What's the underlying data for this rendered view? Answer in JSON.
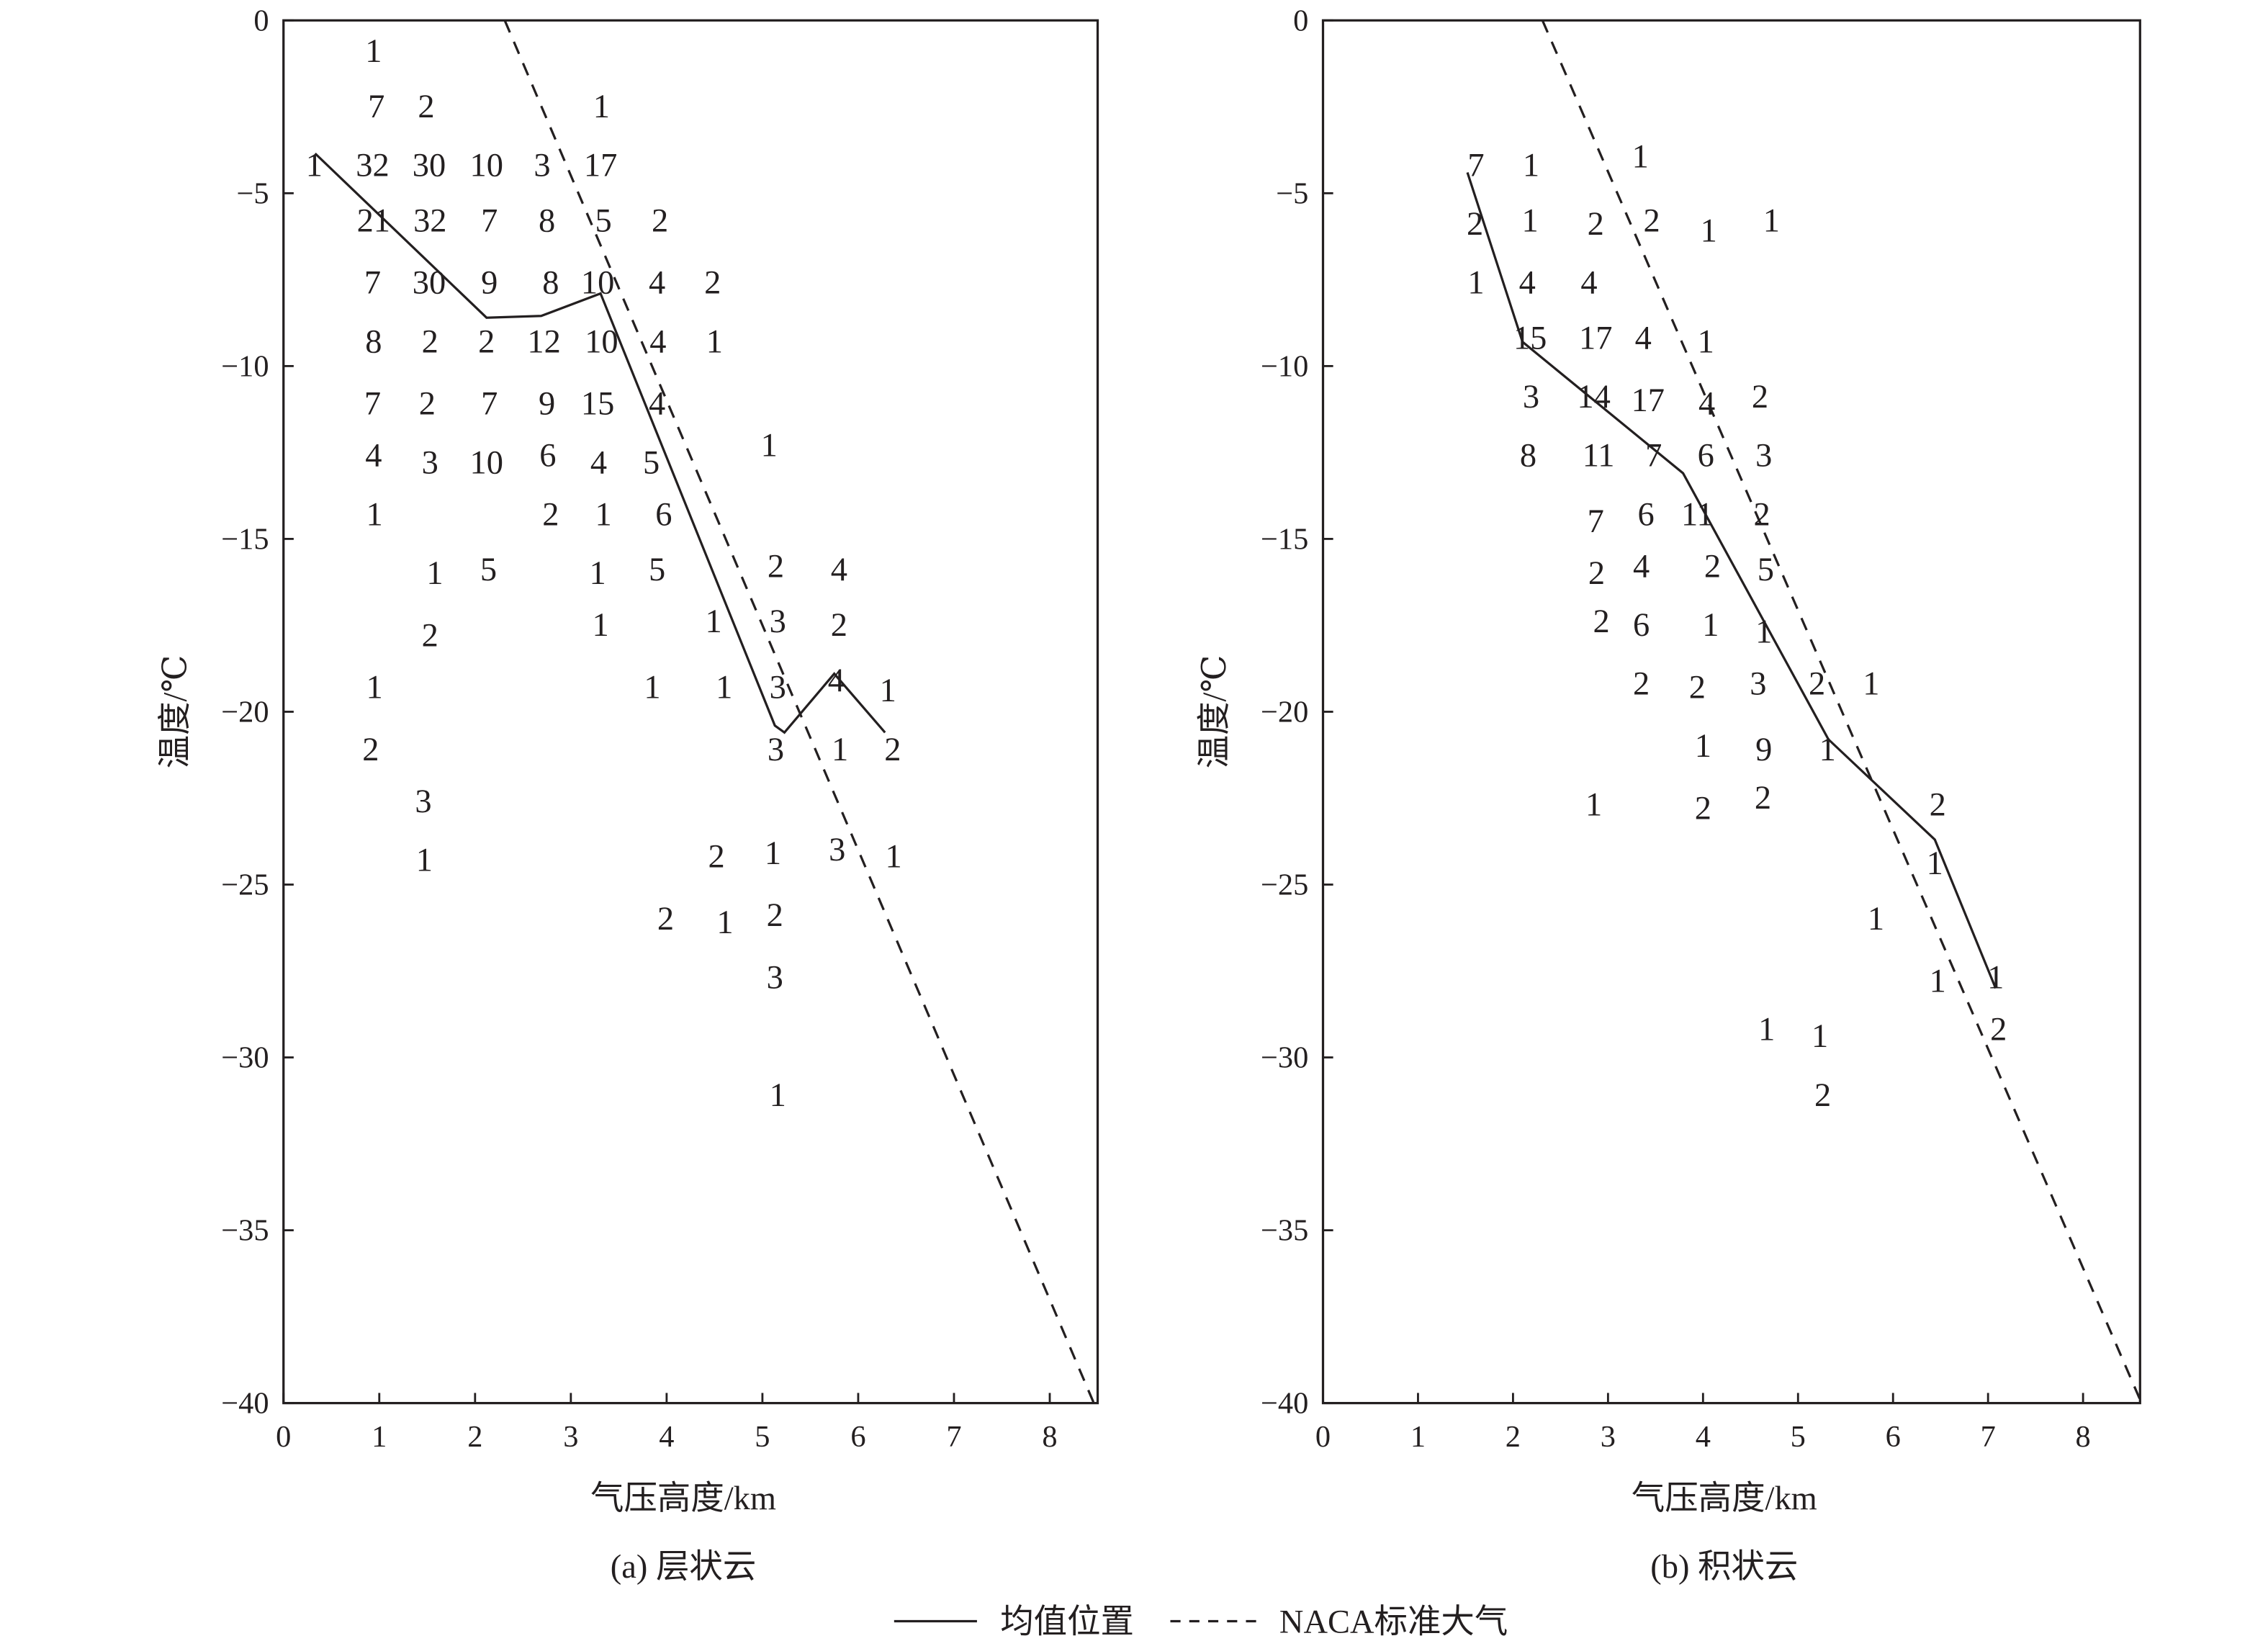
{
  "legend": {
    "mean_label": "均值位置",
    "naca_label": "NACA标准大气"
  },
  "chart_data": [
    {
      "type": "scatter",
      "caption": "(a) 层状云",
      "xlabel": "气压高度/km",
      "ylabel": "温度/℃",
      "xlim": [
        0,
        8.5
      ],
      "ylim": [
        -40,
        0
      ],
      "xticks": [
        0,
        1,
        2,
        3,
        4,
        5,
        6,
        7,
        8
      ],
      "yticks": [
        0,
        -5,
        -10,
        -15,
        -20,
        -25,
        -30,
        -35,
        -40
      ],
      "grid": false,
      "legend_position": "bottom",
      "counts": [
        [
          0.94,
          -0.9,
          1
        ],
        [
          0.97,
          -2.5,
          7
        ],
        [
          1.49,
          -2.5,
          2
        ],
        [
          3.32,
          -2.5,
          1
        ],
        [
          0.32,
          -4.2,
          1
        ],
        [
          0.93,
          -4.2,
          32
        ],
        [
          1.52,
          -4.2,
          30
        ],
        [
          2.12,
          -4.2,
          10
        ],
        [
          2.7,
          -4.2,
          3
        ],
        [
          3.31,
          -4.2,
          17
        ],
        [
          0.94,
          -5.8,
          21
        ],
        [
          1.53,
          -5.8,
          32
        ],
        [
          2.15,
          -5.8,
          7
        ],
        [
          2.75,
          -5.8,
          8
        ],
        [
          3.34,
          -5.8,
          5
        ],
        [
          3.93,
          -5.8,
          2
        ],
        [
          0.93,
          -7.6,
          7
        ],
        [
          1.52,
          -7.6,
          30
        ],
        [
          2.15,
          -7.6,
          9
        ],
        [
          2.79,
          -7.6,
          8
        ],
        [
          3.28,
          -7.6,
          10
        ],
        [
          3.9,
          -7.6,
          4
        ],
        [
          4.48,
          -7.6,
          2
        ],
        [
          0.94,
          -9.3,
          8
        ],
        [
          1.53,
          -9.3,
          2
        ],
        [
          2.12,
          -9.3,
          2
        ],
        [
          2.72,
          -9.3,
          12
        ],
        [
          3.32,
          -9.3,
          10
        ],
        [
          3.91,
          -9.3,
          4
        ],
        [
          4.5,
          -9.3,
          1
        ],
        [
          0.93,
          -11.1,
          7
        ],
        [
          1.5,
          -11.1,
          2
        ],
        [
          2.15,
          -11.1,
          7
        ],
        [
          2.75,
          -11.1,
          9
        ],
        [
          3.28,
          -11.1,
          15
        ],
        [
          3.9,
          -11.1,
          4
        ],
        [
          0.94,
          -12.6,
          4
        ],
        [
          1.53,
          -12.8,
          3
        ],
        [
          2.12,
          -12.8,
          10
        ],
        [
          2.76,
          -12.6,
          6
        ],
        [
          3.29,
          -12.8,
          4
        ],
        [
          3.84,
          -12.8,
          5
        ],
        [
          5.07,
          -12.3,
          1
        ],
        [
          0.95,
          -14.3,
          1
        ],
        [
          2.79,
          -14.3,
          2
        ],
        [
          3.34,
          -14.3,
          1
        ],
        [
          3.97,
          -14.3,
          6
        ],
        [
          1.58,
          -16.0,
          1
        ],
        [
          2.14,
          -15.9,
          5
        ],
        [
          3.28,
          -16.0,
          1
        ],
        [
          3.9,
          -15.9,
          5
        ],
        [
          5.14,
          -15.8,
          2
        ],
        [
          5.8,
          -15.9,
          4
        ],
        [
          1.53,
          -17.8,
          2
        ],
        [
          3.31,
          -17.5,
          1
        ],
        [
          4.49,
          -17.4,
          1
        ],
        [
          5.16,
          -17.4,
          3
        ],
        [
          5.8,
          -17.5,
          2
        ],
        [
          0.95,
          -19.3,
          1
        ],
        [
          3.85,
          -19.3,
          1
        ],
        [
          4.6,
          -19.3,
          1
        ],
        [
          5.16,
          -19.3,
          3
        ],
        [
          5.77,
          -19.1,
          4
        ],
        [
          6.31,
          -19.4,
          1
        ],
        [
          0.91,
          -21.1,
          2
        ],
        [
          5.14,
          -21.1,
          3
        ],
        [
          5.81,
          -21.1,
          1
        ],
        [
          6.36,
          -21.1,
          2
        ],
        [
          1.46,
          -22.6,
          3
        ],
        [
          1.47,
          -24.3,
          1
        ],
        [
          4.52,
          -24.2,
          2
        ],
        [
          5.11,
          -24.1,
          1
        ],
        [
          5.78,
          -24.0,
          3
        ],
        [
          6.37,
          -24.2,
          1
        ],
        [
          3.99,
          -26.0,
          2
        ],
        [
          4.61,
          -26.1,
          1
        ],
        [
          5.13,
          -25.9,
          2
        ],
        [
          5.13,
          -27.7,
          3
        ],
        [
          5.16,
          -31.1,
          1
        ]
      ],
      "series": [
        {
          "name": "均值位置",
          "style": "solid",
          "x": [
            0.33,
            2.12,
            2.69,
            3.31,
            5.13,
            5.23,
            5.75,
            6.28
          ],
          "y": [
            -3.85,
            -8.6,
            -8.55,
            -7.9,
            -20.4,
            -20.6,
            -18.9,
            -20.6
          ]
        },
        {
          "name": "NACA标准大气",
          "style": "dashed",
          "x": [
            2.31,
            8.46
          ],
          "y": [
            0,
            -40
          ]
        }
      ]
    },
    {
      "type": "scatter",
      "caption": "(b) 积状云",
      "xlabel": "气压高度/km",
      "ylabel": "温度/℃",
      "xlim": [
        0,
        8.6
      ],
      "ylim": [
        -40,
        0
      ],
      "xticks": [
        0,
        1,
        2,
        3,
        4,
        5,
        6,
        7,
        8
      ],
      "yticks": [
        0,
        -5,
        -10,
        -15,
        -20,
        -25,
        -30,
        -35,
        -40
      ],
      "grid": false,
      "legend_position": "bottom",
      "counts": [
        [
          1.61,
          -4.2,
          7
        ],
        [
          2.19,
          -4.2,
          1
        ],
        [
          3.34,
          -3.95,
          1
        ],
        [
          1.6,
          -5.9,
          2
        ],
        [
          2.18,
          -5.8,
          1
        ],
        [
          2.87,
          -5.9,
          2
        ],
        [
          3.46,
          -5.8,
          2
        ],
        [
          4.06,
          -6.1,
          1
        ],
        [
          4.72,
          -5.8,
          1
        ],
        [
          1.61,
          -7.6,
          1
        ],
        [
          2.15,
          -7.6,
          4
        ],
        [
          2.8,
          -7.6,
          4
        ],
        [
          2.18,
          -9.2,
          15
        ],
        [
          2.87,
          -9.2,
          17
        ],
        [
          3.37,
          -9.2,
          4
        ],
        [
          4.03,
          -9.3,
          1
        ],
        [
          2.19,
          -10.9,
          3
        ],
        [
          2.85,
          -10.9,
          14
        ],
        [
          3.42,
          -11.0,
          17
        ],
        [
          4.04,
          -11.1,
          4
        ],
        [
          4.6,
          -10.9,
          2
        ],
        [
          2.16,
          -12.6,
          8
        ],
        [
          2.9,
          -12.6,
          11
        ],
        [
          3.48,
          -12.6,
          7
        ],
        [
          4.03,
          -12.6,
          6
        ],
        [
          4.64,
          -12.6,
          3
        ],
        [
          2.87,
          -14.5,
          7
        ],
        [
          3.4,
          -14.3,
          6
        ],
        [
          3.94,
          -14.3,
          11
        ],
        [
          4.62,
          -14.3,
          2
        ],
        [
          2.88,
          -16.0,
          2
        ],
        [
          3.35,
          -15.8,
          4
        ],
        [
          4.1,
          -15.8,
          2
        ],
        [
          4.66,
          -15.9,
          5
        ],
        [
          2.93,
          -17.4,
          2
        ],
        [
          3.35,
          -17.5,
          6
        ],
        [
          4.08,
          -17.5,
          1
        ],
        [
          4.64,
          -17.7,
          1
        ],
        [
          3.35,
          -19.2,
          2
        ],
        [
          3.94,
          -19.3,
          2
        ],
        [
          4.58,
          -19.2,
          3
        ],
        [
          5.2,
          -19.2,
          2
        ],
        [
          5.77,
          -19.2,
          1
        ],
        [
          4.0,
          -21.0,
          1
        ],
        [
          4.64,
          -21.1,
          9
        ],
        [
          5.31,
          -21.1,
          1
        ],
        [
          2.85,
          -22.7,
          1
        ],
        [
          4.0,
          -22.8,
          2
        ],
        [
          4.63,
          -22.5,
          2
        ],
        [
          6.47,
          -22.7,
          2
        ],
        [
          6.44,
          -24.4,
          1
        ],
        [
          5.82,
          -26.0,
          1
        ],
        [
          6.47,
          -27.8,
          1
        ],
        [
          7.08,
          -27.7,
          1
        ],
        [
          4.67,
          -29.2,
          1
        ],
        [
          5.23,
          -29.4,
          1
        ],
        [
          7.11,
          -29.2,
          2
        ],
        [
          5.26,
          -31.1,
          2
        ]
      ],
      "series": [
        {
          "name": "均值位置",
          "style": "solid",
          "x": [
            1.52,
            2.1,
            3.79,
            5.32,
            6.44,
            7.08
          ],
          "y": [
            -4.4,
            -9.3,
            -13.1,
            -20.8,
            -23.7,
            -28.0
          ]
        },
        {
          "name": "NACA标准大气",
          "style": "dashed",
          "x": [
            2.31,
            8.6
          ],
          "y": [
            0,
            -39.9
          ]
        }
      ]
    }
  ]
}
